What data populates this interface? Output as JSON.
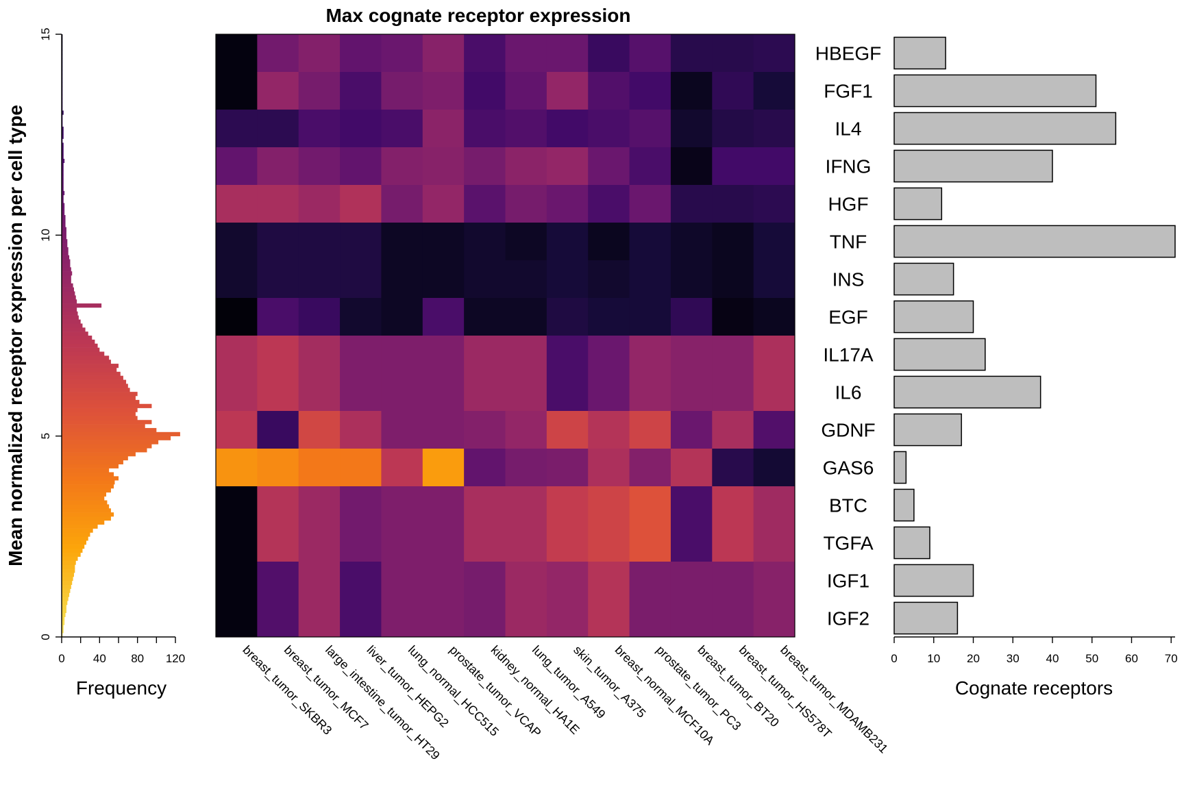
{
  "chart_data": [
    {
      "type": "bar",
      "orientation": "horizontal",
      "name": "histogram",
      "xlabel": "Frequency",
      "ylabel": "Mean normalized receptor expression per cell type",
      "xticks": [
        0,
        40,
        80,
        120
      ],
      "yticks": [
        0,
        5,
        10,
        15
      ],
      "xlim": [
        0,
        120
      ],
      "ylim": [
        0,
        15
      ],
      "bin_width": 0.1,
      "bin_start": 0,
      "values": [
        1,
        2,
        2,
        3,
        3,
        4,
        5,
        5,
        6,
        7,
        8,
        9,
        10,
        11,
        12,
        13,
        14,
        14,
        15,
        17,
        20,
        22,
        24,
        26,
        28,
        30,
        33,
        38,
        45,
        52,
        55,
        52,
        50,
        48,
        45,
        47,
        52,
        55,
        56,
        60,
        55,
        50,
        60,
        65,
        70,
        78,
        90,
        95,
        102,
        115,
        125,
        100,
        88,
        95,
        80,
        78,
        80,
        95,
        82,
        78,
        80,
        72,
        70,
        68,
        65,
        62,
        58,
        60,
        52,
        50,
        45,
        40,
        38,
        35,
        32,
        28,
        25,
        22,
        20,
        18,
        17,
        16,
        42,
        16,
        15,
        14,
        13,
        12,
        10,
        10,
        11,
        10,
        9,
        9,
        8,
        7,
        7,
        6,
        6,
        5,
        5,
        5,
        4,
        4,
        4,
        3,
        3,
        3,
        2,
        2,
        3,
        2,
        2,
        2,
        2,
        2,
        2,
        2,
        3,
        2,
        2,
        2,
        2,
        1,
        2,
        2,
        2,
        1,
        1,
        1,
        2,
        1,
        1,
        1,
        1,
        1,
        1,
        1,
        1,
        1,
        1,
        1,
        1,
        1,
        1,
        1,
        1,
        1,
        1,
        1
      ]
    },
    {
      "type": "heatmap",
      "title": "Max cognate receptor expression",
      "columns": [
        "breast_tumor_SKBR3",
        "breast_tumor_MCF7",
        "large_intestine_tumor_HT29",
        "liver_tumor_HEPG2",
        "lung_normal_HCC515",
        "prostate_tumor_VCAP",
        "kidney_normal_HA1E",
        "lung_tumor_A549",
        "skin_tumor_A375",
        "breast_normal_MCF10A",
        "prostate_tumor_PC3",
        "breast_tumor_BT20",
        "breast_tumor_HS578T",
        "breast_tumor_MDAMB231"
      ],
      "rows": [
        "HBEGF",
        "FGF1",
        "IL4",
        "IFNG",
        "HGF",
        "TNF",
        "INS",
        "EGF",
        "IL17A",
        "IL6",
        "GDNF",
        "GAS6",
        "BTC",
        "TGFA",
        "IGF1",
        "IGF2"
      ],
      "values": [
        [
          0.02,
          0.32,
          0.36,
          0.28,
          0.3,
          0.37,
          0.22,
          0.3,
          0.3,
          0.18,
          0.25,
          0.14,
          0.14,
          0.15
        ],
        [
          0.02,
          0.4,
          0.33,
          0.22,
          0.33,
          0.35,
          0.2,
          0.28,
          0.4,
          0.24,
          0.2,
          0.05,
          0.16,
          0.1
        ],
        [
          0.15,
          0.15,
          0.22,
          0.2,
          0.22,
          0.38,
          0.22,
          0.24,
          0.2,
          0.22,
          0.25,
          0.08,
          0.13,
          0.14
        ],
        [
          0.28,
          0.36,
          0.32,
          0.28,
          0.36,
          0.37,
          0.33,
          0.38,
          0.4,
          0.3,
          0.22,
          0.04,
          0.2,
          0.2
        ],
        [
          0.45,
          0.45,
          0.42,
          0.47,
          0.33,
          0.4,
          0.26,
          0.33,
          0.3,
          0.22,
          0.3,
          0.14,
          0.14,
          0.15
        ],
        [
          0.08,
          0.12,
          0.12,
          0.12,
          0.06,
          0.06,
          0.08,
          0.06,
          0.1,
          0.05,
          0.1,
          0.07,
          0.05,
          0.1
        ],
        [
          0.08,
          0.12,
          0.12,
          0.12,
          0.06,
          0.06,
          0.08,
          0.08,
          0.1,
          0.08,
          0.1,
          0.07,
          0.05,
          0.1
        ],
        [
          0.01,
          0.22,
          0.18,
          0.08,
          0.06,
          0.22,
          0.06,
          0.06,
          0.12,
          0.1,
          0.1,
          0.16,
          0.03,
          0.05
        ],
        [
          0.46,
          0.5,
          0.44,
          0.35,
          0.35,
          0.35,
          0.42,
          0.42,
          0.22,
          0.3,
          0.4,
          0.37,
          0.37,
          0.46
        ],
        [
          0.46,
          0.5,
          0.44,
          0.35,
          0.35,
          0.35,
          0.42,
          0.42,
          0.22,
          0.3,
          0.4,
          0.37,
          0.37,
          0.46
        ],
        [
          0.5,
          0.18,
          0.56,
          0.46,
          0.35,
          0.35,
          0.36,
          0.4,
          0.55,
          0.48,
          0.55,
          0.3,
          0.45,
          0.24
        ],
        [
          0.76,
          0.74,
          0.7,
          0.7,
          0.5,
          0.78,
          0.28,
          0.33,
          0.34,
          0.46,
          0.36,
          0.48,
          0.14,
          0.09
        ],
        [
          0.02,
          0.48,
          0.42,
          0.32,
          0.35,
          0.35,
          0.45,
          0.45,
          0.52,
          0.55,
          0.6,
          0.22,
          0.5,
          0.43
        ],
        [
          0.02,
          0.48,
          0.42,
          0.32,
          0.35,
          0.35,
          0.45,
          0.45,
          0.52,
          0.55,
          0.6,
          0.22,
          0.5,
          0.43
        ],
        [
          0.02,
          0.24,
          0.42,
          0.22,
          0.35,
          0.35,
          0.33,
          0.42,
          0.4,
          0.48,
          0.34,
          0.34,
          0.34,
          0.37
        ],
        [
          0.02,
          0.24,
          0.42,
          0.22,
          0.35,
          0.35,
          0.33,
          0.42,
          0.4,
          0.48,
          0.34,
          0.34,
          0.34,
          0.37
        ]
      ]
    },
    {
      "type": "bar",
      "orientation": "horizontal",
      "name": "cognate",
      "categories": [
        "HBEGF",
        "FGF1",
        "IL4",
        "IFNG",
        "HGF",
        "TNF",
        "INS",
        "EGF",
        "IL17A",
        "IL6",
        "GDNF",
        "GAS6",
        "BTC",
        "TGFA",
        "IGF1",
        "IGF2"
      ],
      "values": [
        13,
        51,
        56,
        40,
        12,
        71,
        15,
        20,
        23,
        37,
        17,
        3,
        5,
        9,
        20,
        16
      ],
      "xlabel": "Cognate receptors",
      "xticks": [
        0,
        10,
        20,
        30,
        40,
        50,
        60,
        70
      ],
      "xlim": [
        0,
        71
      ],
      "bar_color": "#bebebe"
    }
  ]
}
